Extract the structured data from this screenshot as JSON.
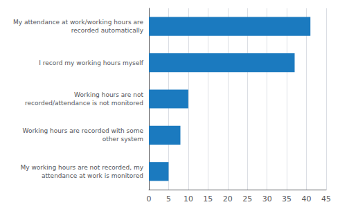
{
  "chart_data": {
    "type": "bar",
    "orientation": "horizontal",
    "categories": [
      "My working hours are not recorded, my\nattendance at work is monitored",
      "Working hours are recorded with some\nother system",
      "Working hours are not\nrecorded/attendance is not monitored",
      "I record my working hours myself",
      "My attendance at work/working hours are\nrecorded automatically"
    ],
    "values": [
      5,
      8,
      10,
      37,
      41
    ],
    "color": "#1b7abf",
    "xlim": [
      0,
      45
    ],
    "xticks": [
      0,
      5,
      10,
      15,
      20,
      25,
      30,
      35,
      40,
      45
    ],
    "grid": true
  }
}
